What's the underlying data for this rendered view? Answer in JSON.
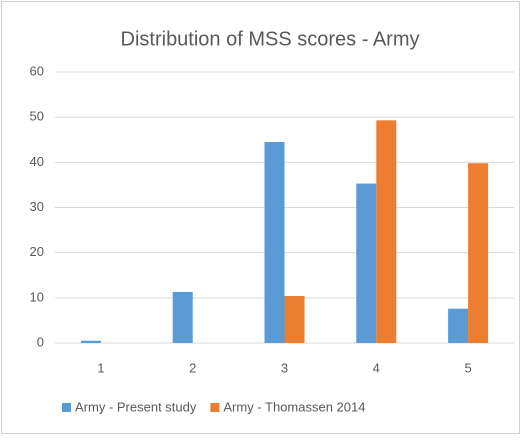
{
  "chart_data": {
    "type": "bar",
    "title": "Distribution of MSS scores - Army",
    "categories": [
      "1",
      "2",
      "3",
      "4",
      "5"
    ],
    "series": [
      {
        "name": "Army - Present study",
        "color": "#5b9bd5",
        "values": [
          0.5,
          11.3,
          44.5,
          35.3,
          7.6
        ]
      },
      {
        "name": "Army - Thomassen 2014",
        "color": "#ed7d31",
        "values": [
          0,
          0,
          10.4,
          49.3,
          39.8
        ]
      }
    ],
    "ylim": [
      0,
      60
    ],
    "yticks": [
      0,
      10,
      20,
      30,
      40,
      50,
      60
    ],
    "grid": true,
    "legend": "bottom"
  }
}
